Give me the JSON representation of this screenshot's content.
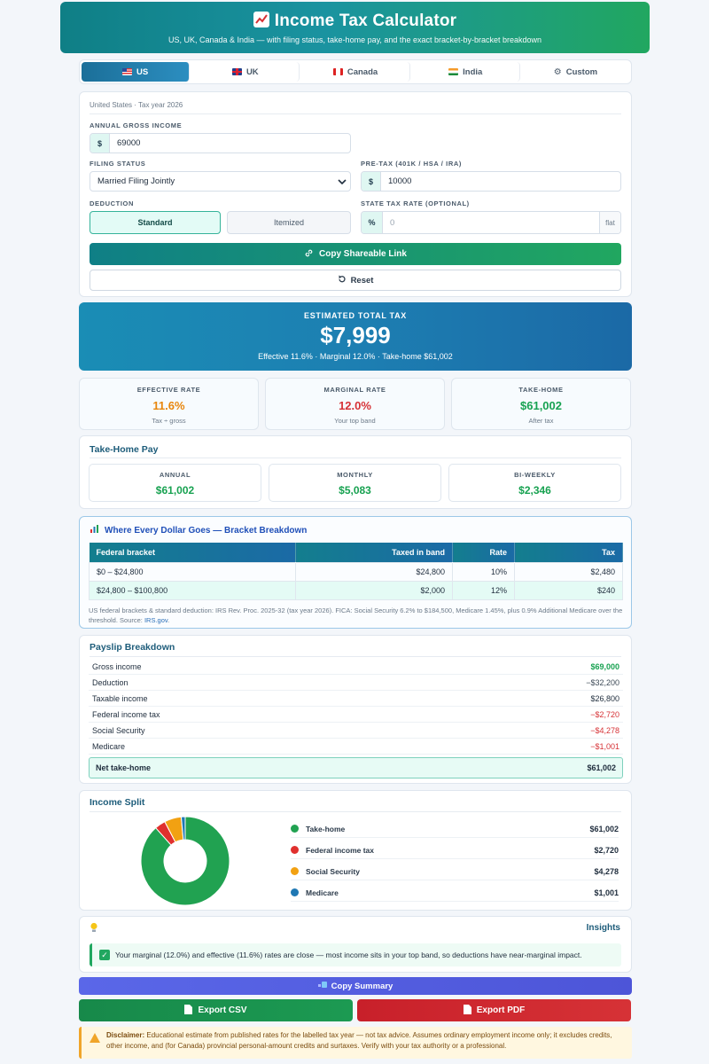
{
  "header": {
    "title": "Income Tax Calculator",
    "subtitle": "US, UK, Canada & India — with filing status, take-home pay, and the exact bracket-by-bracket breakdown"
  },
  "tabs": [
    {
      "label": "US",
      "active": true
    },
    {
      "label": "UK"
    },
    {
      "label": "Canada"
    },
    {
      "label": "India"
    },
    {
      "label": "Custom"
    }
  ],
  "form": {
    "context": "United States · Tax year 2026",
    "income_label": "ANNUAL GROSS INCOME",
    "income_prefix": "$",
    "income_value": "69000",
    "filing_label": "FILING STATUS",
    "filing_value": "Married Filing Jointly",
    "pretax_label": "PRE-TAX (401K / HSA / IRA)",
    "pretax_prefix": "$",
    "pretax_value": "10000",
    "deduction_label": "DEDUCTION",
    "deduction_standard": "Standard",
    "deduction_itemized": "Itemized",
    "state_label": "STATE TAX RATE (OPTIONAL)",
    "state_prefix": "%",
    "state_placeholder": "0",
    "state_suffix": "flat",
    "copy_link": "Copy Shareable Link",
    "reset": "Reset"
  },
  "estimate": {
    "title": "ESTIMATED TOTAL TAX",
    "amount": "$7,999",
    "summary": "Effective 11.6% · Marginal 12.0% · Take-home $61,002"
  },
  "stats": [
    {
      "label": "EFFECTIVE RATE",
      "value": "11.6%",
      "note": "Tax ÷ gross",
      "color": "#e8860c"
    },
    {
      "label": "MARGINAL RATE",
      "value": "12.0%",
      "note": "Your top band",
      "color": "#d63236"
    },
    {
      "label": "TAKE-HOME",
      "value": "$61,002",
      "note": "After tax",
      "color": "#18a251"
    }
  ],
  "takehome": {
    "title": "Take-Home Pay",
    "items": [
      {
        "label": "ANNUAL",
        "value": "$61,002"
      },
      {
        "label": "MONTHLY",
        "value": "$5,083"
      },
      {
        "label": "BI-WEEKLY",
        "value": "$2,346"
      }
    ]
  },
  "brackets": {
    "title": "Where Every Dollar Goes — Bracket Breakdown",
    "columns": [
      "Federal bracket",
      "Taxed in band",
      "Rate",
      "Tax"
    ],
    "rows": [
      [
        "$0 – $24,800",
        "$24,800",
        "10%",
        "$2,480"
      ],
      [
        "$24,800 – $100,800",
        "$2,000",
        "12%",
        "$240"
      ]
    ],
    "note": "US federal brackets & standard deduction: IRS Rev. Proc. 2025-32 (tax year 2026). FICA: Social Security 6.2% to $184,500, Medicare 1.45%, plus 0.9% Additional Medicare over the threshold. Source:",
    "source_link": "IRS.gov",
    "note_end": "."
  },
  "payslip": {
    "title": "Payslip Breakdown",
    "rows": [
      {
        "label": "Gross income",
        "value": "$69,000",
        "color": "#18a251",
        "bold": true
      },
      {
        "label": "Deduction",
        "value": "−$32,200",
        "color": "#3d4a57"
      },
      {
        "label": "Taxable income",
        "value": "$26,800",
        "color": "#1f2d3d"
      },
      {
        "label": "Federal income tax",
        "value": "−$2,720",
        "color": "#d63236"
      },
      {
        "label": "Social Security",
        "value": "−$4,278",
        "color": "#d63236"
      },
      {
        "label": "Medicare",
        "value": "−$1,001",
        "color": "#d63236"
      }
    ],
    "net_label": "Net take-home",
    "net_value": "$61,002"
  },
  "split": {
    "title": "Income Split",
    "items": [
      {
        "label": "Take-home",
        "value": "$61,002",
        "amount": 61002,
        "color": "#21a251"
      },
      {
        "label": "Federal income tax",
        "value": "$2,720",
        "amount": 2720,
        "color": "#e0302e"
      },
      {
        "label": "Social Security",
        "value": "$4,278",
        "amount": 4278,
        "color": "#f2a112"
      },
      {
        "label": "Medicare",
        "value": "$1,001",
        "amount": 1001,
        "color": "#1f78b4"
      }
    ]
  },
  "insights": {
    "title": "Insights",
    "text": "Your marginal (12.0%) and effective (11.6%) rates are close — most income sits in your top band, so deductions have near-marginal impact."
  },
  "actions": {
    "copy_summary": "Copy Summary",
    "export_csv": "Export CSV",
    "export_pdf": "Export PDF"
  },
  "disclaimer": {
    "label": "Disclaimer:",
    "text": "Educational estimate from published rates for the labelled tax year — not tax advice. Assumes ordinary employment income only; it excludes credits, other income, and (for Canada) provincial personal-amount credits and surtaxes. Verify with your tax authority or a professional."
  }
}
